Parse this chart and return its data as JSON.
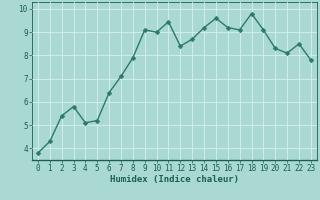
{
  "x": [
    0,
    1,
    2,
    3,
    4,
    5,
    6,
    7,
    8,
    9,
    10,
    11,
    12,
    13,
    14,
    15,
    16,
    17,
    18,
    19,
    20,
    21,
    22,
    23
  ],
  "y": [
    3.8,
    4.3,
    5.4,
    5.8,
    5.1,
    5.2,
    6.4,
    7.1,
    7.9,
    9.1,
    9.0,
    9.45,
    8.4,
    8.7,
    9.2,
    9.6,
    9.2,
    9.1,
    9.8,
    9.1,
    8.3,
    8.1,
    8.5,
    7.8
  ],
  "bg_color": "#aad9d4",
  "grid_color": "#d8f0ee",
  "line_color": "#2d7a6a",
  "marker_color": "#2d7a6a",
  "xlabel": "Humidex (Indice chaleur)",
  "xlabel_color": "#1a5f52",
  "tick_color": "#1a5f52",
  "ylim": [
    3.5,
    10.3
  ],
  "xlim": [
    -0.5,
    23.5
  ],
  "yticks": [
    4,
    5,
    6,
    7,
    8,
    9,
    10
  ],
  "xticks": [
    0,
    1,
    2,
    3,
    4,
    5,
    6,
    7,
    8,
    9,
    10,
    11,
    12,
    13,
    14,
    15,
    16,
    17,
    18,
    19,
    20,
    21,
    22,
    23
  ],
  "marker_size": 2.5,
  "line_width": 1.0,
  "font_size_label": 6.5,
  "font_size_tick": 5.5
}
